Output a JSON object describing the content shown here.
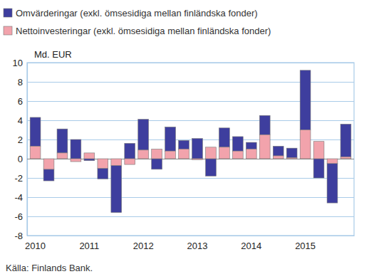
{
  "chart_data": {
    "type": "bar",
    "stacked": true,
    "grid": true,
    "legend": "top-left",
    "y_label": "Md. EUR",
    "annotations": [
      "Källa: Finlands Bank."
    ],
    "categories": [
      "2010",
      null,
      null,
      null,
      "2011",
      null,
      null,
      null,
      "2012",
      null,
      null,
      null,
      "2013",
      null,
      null,
      null,
      "2014",
      null,
      null,
      null,
      "2015",
      null,
      null,
      null
    ],
    "series": [
      {
        "name": "Omvärderingar (exkl. ömsesidiga mellan finländska fonder)",
        "color": "#3e3e9e",
        "values": [
          3.0,
          -1.2,
          2.5,
          2.0,
          -0.2,
          -1.1,
          -4.9,
          1.6,
          3.2,
          -1.1,
          2.5,
          0.9,
          2.1,
          -1.8,
          2.0,
          1.5,
          0.7,
          2.0,
          1.0,
          1.0,
          6.2,
          -2.0,
          -4.1,
          3.4
        ]
      },
      {
        "name": "Nettoinvesteringar (exkl. ömsesidiga mellan finländska fonder)",
        "color": "#f2a3ac",
        "values": [
          1.3,
          -1.1,
          0.6,
          -0.3,
          0.6,
          -1.0,
          -0.7,
          -0.6,
          0.9,
          1.0,
          0.8,
          1.0,
          -0.1,
          1.2,
          1.2,
          0.8,
          1.0,
          2.5,
          0.3,
          0.1,
          3.0,
          1.8,
          -0.5,
          0.2
        ]
      }
    ],
    "ylim": [
      -8,
      10
    ],
    "yticks": [
      -8,
      -6,
      -4,
      -2,
      0,
      2,
      4,
      6,
      8,
      10
    ]
  }
}
